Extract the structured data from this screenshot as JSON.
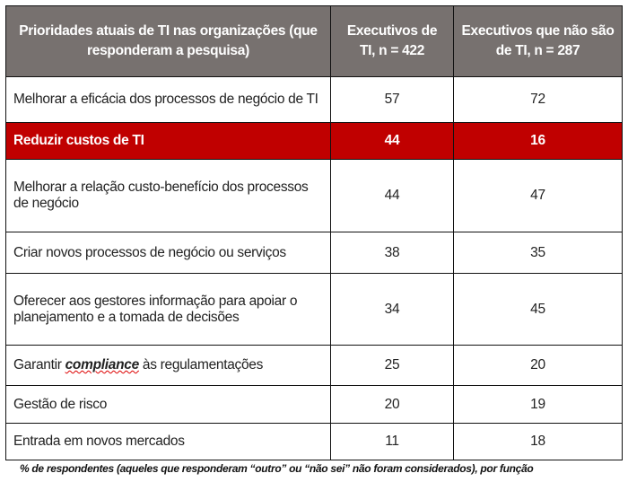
{
  "table": {
    "headers": [
      "Prioridades atuais de TI nas organizações (que responderam a pesquisa)",
      "Executivos de TI, n = 422",
      "Executivos que não são de TI, n = 287"
    ],
    "rows": [
      {
        "label": "Melhorar a eficácia dos processos de negócio de TI",
        "it": "57",
        "nonit": "72"
      },
      {
        "label": "Reduzir custos de TI",
        "it": "44",
        "nonit": "16",
        "highlighted": true
      },
      {
        "label": "Melhorar a relação custo-benefício dos processos de negócio",
        "it": "44",
        "nonit": "47"
      },
      {
        "label": "Criar novos processos de negócio ou serviços",
        "it": "38",
        "nonit": "35"
      },
      {
        "label": "Oferecer aos gestores informação para apoiar o planejamento e a tomada de decisões",
        "it": "34",
        "nonit": "45"
      },
      {
        "label_pre": "Garantir ",
        "label_em": "compliance",
        "label_post": " às regulamentações",
        "it": "25",
        "nonit": "20"
      },
      {
        "label": "Gestão de risco",
        "it": "20",
        "nonit": "19"
      },
      {
        "label": "Entrada em novos mercados",
        "it": "11",
        "nonit": "18"
      }
    ]
  },
  "footnote": "% de respondentes (aqueles que responderam “outro” ou “não sei” não foram considerados), por função",
  "colors": {
    "header_bg": "#77716f",
    "highlight": "#c00000"
  }
}
